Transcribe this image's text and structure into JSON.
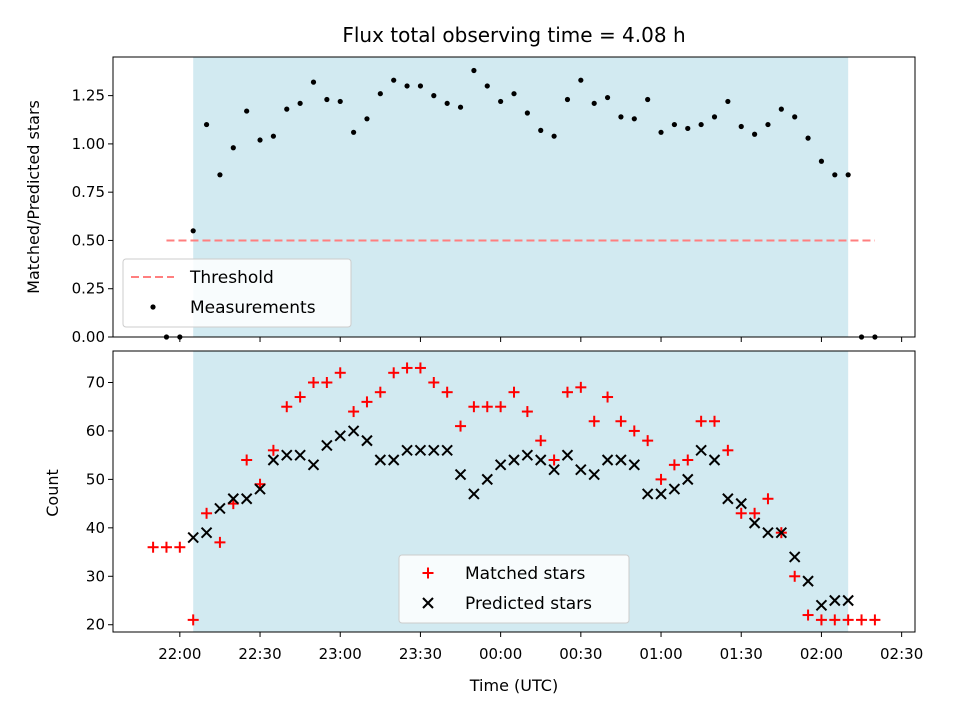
{
  "chart_data": [
    {
      "type": "scatter",
      "title": "Flux total observing time = 4.08 h",
      "xlabel": "",
      "ylabel": "Matched/Predicted stars",
      "ylim": [
        0,
        1.45
      ],
      "yticks": [
        "0.00",
        "0.25",
        "0.50",
        "0.75",
        "1.00",
        "1.25"
      ],
      "grid": false,
      "legend_placement": "lower-left",
      "shaded_interval": [
        "22:05",
        "02:10"
      ],
      "shade_color": "#add8e6",
      "threshold": {
        "name": "Threshold",
        "value": 0.5,
        "x_range": [
          "21:55",
          "02:20"
        ],
        "color": "#ff7f7f"
      },
      "series": [
        {
          "name": "Measurements",
          "color": "#000000",
          "x": [
            "21:55",
            "22:00",
            "22:05",
            "22:10",
            "22:15",
            "22:20",
            "22:25",
            "22:30",
            "22:35",
            "22:40",
            "22:45",
            "22:50",
            "22:55",
            "23:00",
            "23:05",
            "23:10",
            "23:15",
            "23:20",
            "23:25",
            "23:30",
            "23:35",
            "23:40",
            "23:45",
            "23:50",
            "23:55",
            "00:00",
            "00:05",
            "00:10",
            "00:15",
            "00:20",
            "00:25",
            "00:30",
            "00:35",
            "00:40",
            "00:45",
            "00:50",
            "00:55",
            "01:00",
            "01:05",
            "01:10",
            "01:15",
            "01:20",
            "01:25",
            "01:30",
            "01:35",
            "01:40",
            "01:45",
            "01:50",
            "01:55",
            "02:00",
            "02:05",
            "02:10",
            "02:15",
            "02:20"
          ],
          "y": [
            0.0,
            0.0,
            0.55,
            1.1,
            0.84,
            0.98,
            1.17,
            1.02,
            1.04,
            1.18,
            1.21,
            1.32,
            1.23,
            1.22,
            1.06,
            1.13,
            1.26,
            1.33,
            1.3,
            1.3,
            1.25,
            1.21,
            1.19,
            1.38,
            1.3,
            1.22,
            1.26,
            1.16,
            1.07,
            1.04,
            1.23,
            1.33,
            1.21,
            1.24,
            1.14,
            1.13,
            1.23,
            1.06,
            1.1,
            1.08,
            1.1,
            1.14,
            1.22,
            1.09,
            1.05,
            1.1,
            1.18,
            1.14,
            1.03,
            0.91,
            0.84,
            0.84,
            0.0,
            0.0
          ]
        }
      ]
    },
    {
      "type": "scatter",
      "title": "",
      "xlabel": "Time (UTC)",
      "ylabel": "Count",
      "ylim": [
        18.5,
        76.5
      ],
      "yticks": [
        "20",
        "30",
        "40",
        "50",
        "60",
        "70"
      ],
      "xticks": [
        "22:00",
        "22:30",
        "23:00",
        "23:30",
        "00:00",
        "00:30",
        "01:00",
        "01:30",
        "02:00",
        "02:30"
      ],
      "grid": false,
      "legend_placement": "lower-center",
      "shaded_interval": [
        "22:05",
        "02:10"
      ],
      "series": [
        {
          "name": "Matched stars",
          "marker": "plus",
          "color": "#ff0000",
          "x": [
            "21:50",
            "21:55",
            "22:00",
            "22:05",
            "22:10",
            "22:15",
            "22:20",
            "22:25",
            "22:30",
            "22:35",
            "22:40",
            "22:45",
            "22:50",
            "22:55",
            "23:00",
            "23:05",
            "23:10",
            "23:15",
            "23:20",
            "23:25",
            "23:30",
            "23:35",
            "23:40",
            "23:45",
            "23:50",
            "23:55",
            "00:00",
            "00:05",
            "00:10",
            "00:15",
            "00:20",
            "00:25",
            "00:30",
            "00:35",
            "00:40",
            "00:45",
            "00:50",
            "00:55",
            "01:00",
            "01:05",
            "01:10",
            "01:15",
            "01:20",
            "01:25",
            "01:30",
            "01:35",
            "01:40",
            "01:45",
            "01:50",
            "01:55",
            "02:00",
            "02:05",
            "02:10",
            "02:15",
            "02:20"
          ],
          "y": [
            36,
            36,
            36,
            21,
            43,
            37,
            45,
            54,
            49,
            56,
            65,
            67,
            70,
            70,
            72,
            64,
            66,
            68,
            72,
            73,
            73,
            70,
            68,
            61,
            65,
            65,
            65,
            68,
            64,
            58,
            54,
            68,
            69,
            62,
            67,
            62,
            60,
            58,
            50,
            53,
            54,
            62,
            62,
            56,
            43,
            43,
            46,
            39,
            30,
            22,
            21,
            21,
            21,
            21,
            21
          ]
        },
        {
          "name": "Predicted stars",
          "marker": "x",
          "color": "#000000",
          "x": [
            "22:05",
            "22:10",
            "22:15",
            "22:20",
            "22:25",
            "22:30",
            "22:35",
            "22:40",
            "22:45",
            "22:50",
            "22:55",
            "23:00",
            "23:05",
            "23:10",
            "23:15",
            "23:20",
            "23:25",
            "23:30",
            "23:35",
            "23:40",
            "23:45",
            "23:50",
            "23:55",
            "00:00",
            "00:05",
            "00:10",
            "00:15",
            "00:20",
            "00:25",
            "00:30",
            "00:35",
            "00:40",
            "00:45",
            "00:50",
            "00:55",
            "01:00",
            "01:05",
            "01:10",
            "01:15",
            "01:20",
            "01:25",
            "01:30",
            "01:35",
            "01:40",
            "01:45",
            "01:50",
            "01:55",
            "02:00",
            "02:05",
            "02:10"
          ],
          "y": [
            38,
            39,
            44,
            46,
            46,
            48,
            54,
            55,
            55,
            53,
            57,
            59,
            60,
            58,
            54,
            54,
            56,
            56,
            56,
            56,
            51,
            47,
            50,
            53,
            54,
            55,
            54,
            52,
            55,
            52,
            51,
            54,
            54,
            53,
            47,
            47,
            48,
            50,
            56,
            54,
            46,
            45,
            41,
            39,
            39,
            34,
            29,
            24,
            25,
            25
          ]
        }
      ]
    }
  ]
}
